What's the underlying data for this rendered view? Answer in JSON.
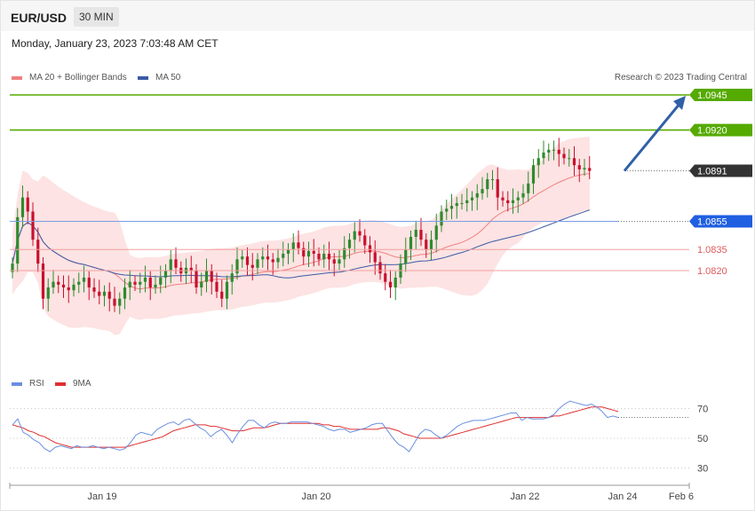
{
  "header": {
    "symbol": "EUR/USD",
    "timeframe": "30 MIN"
  },
  "datetime": "Monday, January 23, 2023 7:03:48 AM CET",
  "credit": "Research © 2023 Trading Central",
  "colors": {
    "bollinger": "#f08080",
    "band_fill": "#fde3e3",
    "ma50": "#3b5ba5",
    "up": "#2e8b2e",
    "down": "#c8102e",
    "target": "#55aa00",
    "pivot": "#1f5fe0",
    "last": "#333333",
    "support": "#e05a5a",
    "arrow": "#3060a8",
    "rsi": "#6a8fe0",
    "rsi_ma": "#e03030"
  },
  "chart_data": [
    {
      "type": "candlestick",
      "title": "",
      "legend": [
        {
          "label": "MA 20 + Bollinger Bands",
          "color": "#f08080"
        },
        {
          "label": "MA 50",
          "color": "#3b5ba5"
        }
      ],
      "legend_position": "top-left",
      "x_ticks": [
        "Jan 19",
        "Jan 20",
        "Jan 22",
        "Jan 24",
        "Feb 6"
      ],
      "price_levels": [
        {
          "label": "1.0945",
          "value": 1.0945,
          "kind": "target"
        },
        {
          "label": "1.0920",
          "value": 1.092,
          "kind": "target"
        },
        {
          "label": "1.0891",
          "value": 1.0891,
          "kind": "last"
        },
        {
          "label": "1.0855",
          "value": 1.0855,
          "kind": "pivot"
        },
        {
          "label": "1.0835",
          "value": 1.0835,
          "kind": "support"
        },
        {
          "label": "1.0820",
          "value": 1.082,
          "kind": "support"
        }
      ],
      "arrow": {
        "from": 1.0891,
        "to": 1.0945
      },
      "closes": [
        1.0825,
        1.0858,
        1.0872,
        1.0862,
        1.0842,
        1.0825,
        1.08,
        1.0808,
        1.0812,
        1.081,
        1.0808,
        1.0806,
        1.081,
        1.0812,
        1.0815,
        1.0808,
        1.0805,
        1.0802,
        1.0805,
        1.08,
        1.0795,
        1.08,
        1.0808,
        1.0812,
        1.081,
        1.0812,
        1.0815,
        1.0808,
        1.081,
        1.0815,
        1.082,
        1.0828,
        1.0822,
        1.0818,
        1.0822,
        1.082,
        1.0808,
        1.0812,
        1.082,
        1.0812,
        1.0805,
        1.08,
        1.0812,
        1.0818,
        1.0828,
        1.083,
        1.0824,
        1.0822,
        1.0828,
        1.083,
        1.0828,
        1.0826,
        1.0829,
        1.0832,
        1.0835,
        1.084,
        1.0836,
        1.083,
        1.0834,
        1.0832,
        1.0828,
        1.0832,
        1.0828,
        1.0825,
        1.0828,
        1.0836,
        1.0842,
        1.0848,
        1.0845,
        1.0838,
        1.0833,
        1.0826,
        1.0818,
        1.0812,
        1.0808,
        1.0815,
        1.0825,
        1.0835,
        1.0844,
        1.0849,
        1.0842,
        1.0835,
        1.0842,
        1.0852,
        1.0862,
        1.0864,
        1.0866,
        1.0868,
        1.0868,
        1.087,
        1.0872,
        1.0875,
        1.0878,
        1.0885,
        1.0885,
        1.0872,
        1.087,
        1.0868,
        1.087,
        1.0872,
        1.0875,
        1.0882,
        1.0895,
        1.09,
        1.0904,
        1.0906,
        1.0906,
        1.0903,
        1.09,
        1.09,
        1.0895,
        1.0892,
        1.0893,
        1.0891
      ]
    },
    {
      "type": "line",
      "title": "",
      "legend": [
        {
          "label": "RSI",
          "color": "#6a8fe0"
        },
        {
          "label": "9MA",
          "color": "#e03030"
        }
      ],
      "y_ticks": [
        "70",
        "50",
        "30"
      ],
      "rsi_last": 64,
      "rsi": [
        59,
        63,
        54,
        52,
        49,
        47,
        43,
        41,
        44,
        45,
        44,
        43,
        45,
        44,
        44,
        45,
        44,
        43,
        44,
        43,
        42,
        43,
        47,
        52,
        54,
        53,
        52,
        56,
        58,
        60,
        61,
        59,
        62,
        63,
        60,
        57,
        55,
        51,
        54,
        56,
        52,
        47,
        53,
        58,
        62,
        62,
        59,
        57,
        60,
        61,
        60,
        60,
        61,
        61,
        61,
        61,
        60,
        59,
        58,
        56,
        55,
        56,
        56,
        54,
        55,
        56,
        57,
        59,
        60,
        60,
        55,
        50,
        46,
        44,
        41,
        47,
        53,
        56,
        55,
        52,
        50,
        52,
        55,
        58,
        60,
        61,
        62,
        62,
        62,
        63,
        64,
        65,
        66,
        67,
        67,
        62,
        64,
        63,
        63,
        63,
        64,
        66,
        70,
        73,
        75,
        74,
        73,
        72,
        73,
        71,
        68,
        64,
        65,
        64
      ],
      "ma9": [
        59,
        58,
        57,
        55,
        54,
        52,
        51,
        49,
        47,
        46,
        45,
        44,
        44,
        44,
        44,
        44,
        44,
        44,
        44,
        44,
        44,
        44,
        45,
        46,
        47,
        48,
        49,
        50,
        51,
        53,
        55,
        56,
        57,
        58,
        59,
        59,
        59,
        58,
        58,
        57,
        56,
        55,
        55,
        55,
        56,
        57,
        57,
        57,
        58,
        59,
        60,
        60,
        60,
        60,
        60,
        60,
        60,
        60,
        59,
        59,
        58,
        58,
        57,
        56,
        56,
        56,
        56,
        56,
        56,
        57,
        57,
        56,
        55,
        53,
        52,
        51,
        50,
        50,
        50,
        50,
        50,
        51,
        52,
        53,
        54,
        55,
        56,
        57,
        58,
        59,
        60,
        61,
        62,
        63,
        64,
        64,
        64,
        64,
        64,
        64,
        64,
        65,
        65,
        66,
        67,
        68,
        69,
        70,
        71,
        71,
        71,
        70,
        69,
        68
      ]
    }
  ]
}
